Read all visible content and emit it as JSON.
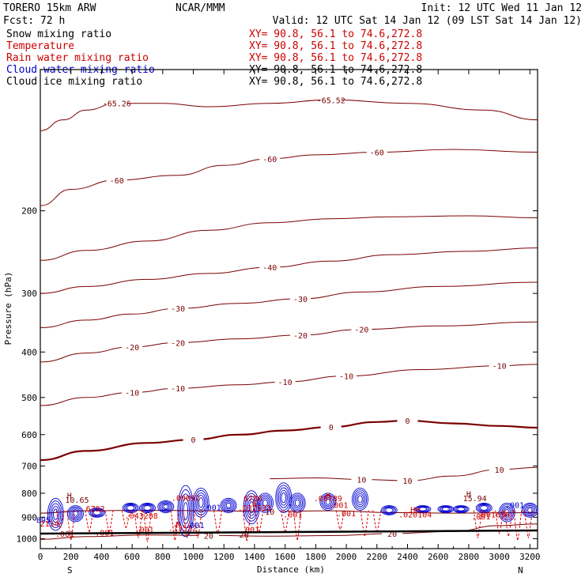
{
  "header": {
    "model": "TORERO 15km ARW",
    "center": "NCAR/MMM",
    "init": "Init: 12 UTC Wed 11 Jan 12",
    "fcst": "Fcst: 72 h",
    "valid": "Valid: 12 UTC Sat 14 Jan 12 (09 LST Sat 14 Jan 12)"
  },
  "legend": [
    {
      "name": "Snow mixing ratio",
      "xy": "XY= 90.8, 56.1 to 74.6,272.8",
      "color": "#000000",
      "xy_color": "#cc0000"
    },
    {
      "name": "Temperature",
      "xy": "XY= 90.8, 56.1 to 74.6,272.8",
      "color": "#cc0000",
      "xy_color": "#cc0000"
    },
    {
      "name": "Rain water mixing ratio",
      "xy": "XY= 90.8, 56.1 to 74.6,272.8",
      "color": "#cc0000",
      "xy_color": "#cc0000"
    },
    {
      "name": "Cloud water mixing ratio",
      "xy": "XY= 90.8, 56.1 to 74.6,272.8",
      "color": "#0000cc",
      "xy_color": "#000000"
    },
    {
      "name": "Cloud ice mixing ratio",
      "xy": "XY= 90.8, 56.1 to 74.6,272.8",
      "color": "#000000",
      "xy_color": "#000000"
    }
  ],
  "colors": {
    "temperature": "#7a0000",
    "rain": "#e00000",
    "cloud": "#0000d0",
    "snow": "#000000",
    "axis": "#000000"
  },
  "chart_data": {
    "type": "line",
    "xlabel": "Distance (km)",
    "ylabel": "Pressure (hPa)",
    "xlim": [
      0,
      3250
    ],
    "ylim": [
      1050,
      100
    ],
    "x_ticks": [
      0,
      200,
      400,
      600,
      800,
      1000,
      1200,
      1400,
      1600,
      1800,
      2000,
      2200,
      2400,
      2600,
      2800,
      3000,
      3200
    ],
    "y_ticks": [
      200,
      300,
      400,
      500,
      600,
      700,
      800,
      900,
      1000
    ],
    "y_log": true,
    "x_end_labels": [
      "S",
      "N"
    ],
    "isotherms": [
      {
        "value": -65,
        "labels": [
          "-65.26",
          "-65.52"
        ],
        "points": [
          [
            0,
            135
          ],
          [
            150,
            128
          ],
          [
            300,
            122
          ],
          [
            500,
            118
          ],
          [
            800,
            118
          ],
          [
            1100,
            120
          ],
          [
            1500,
            118
          ],
          [
            1900,
            116
          ],
          [
            2400,
            118
          ],
          [
            2900,
            122
          ],
          [
            3250,
            128
          ]
        ]
      },
      {
        "value": -60,
        "labels": [
          "-60",
          "-60",
          "-60"
        ],
        "points": [
          [
            0,
            195
          ],
          [
            200,
            180
          ],
          [
            500,
            172
          ],
          [
            900,
            168
          ],
          [
            1200,
            160
          ],
          [
            1500,
            155
          ],
          [
            1800,
            152
          ],
          [
            2200,
            150
          ],
          [
            2700,
            148
          ],
          [
            3250,
            150
          ]
        ]
      },
      {
        "value": -50,
        "labels": [],
        "points": [
          [
            0,
            255
          ],
          [
            300,
            243
          ],
          [
            700,
            232
          ],
          [
            1100,
            220
          ],
          [
            1500,
            212
          ],
          [
            1900,
            208
          ],
          [
            2300,
            206
          ],
          [
            2800,
            205
          ],
          [
            3250,
            207
          ]
        ]
      },
      {
        "value": -40,
        "labels": [
          "-40"
        ],
        "points": [
          [
            0,
            300
          ],
          [
            300,
            290
          ],
          [
            700,
            280
          ],
          [
            1100,
            272
          ],
          [
            1500,
            264
          ],
          [
            1900,
            256
          ],
          [
            2300,
            248
          ],
          [
            2800,
            244
          ],
          [
            3250,
            240
          ]
        ]
      },
      {
        "value": -30,
        "labels": [
          "-30",
          "-30"
        ],
        "points": [
          [
            0,
            355
          ],
          [
            300,
            342
          ],
          [
            600,
            332
          ],
          [
            900,
            323
          ],
          [
            1300,
            315
          ],
          [
            1700,
            308
          ],
          [
            2100,
            298
          ],
          [
            2600,
            290
          ],
          [
            3250,
            284
          ]
        ]
      },
      {
        "value": -20,
        "labels": [
          "-20",
          "-20",
          "-20",
          "-20"
        ],
        "points": [
          [
            0,
            420
          ],
          [
            300,
            402
          ],
          [
            600,
            390
          ],
          [
            900,
            382
          ],
          [
            1300,
            375
          ],
          [
            1700,
            368
          ],
          [
            2100,
            358
          ],
          [
            2600,
            352
          ],
          [
            3250,
            345
          ]
        ]
      },
      {
        "value": -10,
        "labels": [
          "-10",
          "-10",
          "-10",
          "-10",
          "-10"
        ],
        "points": [
          [
            0,
            520
          ],
          [
            300,
            500
          ],
          [
            600,
            488
          ],
          [
            900,
            478
          ],
          [
            1300,
            470
          ],
          [
            1600,
            463
          ],
          [
            2000,
            450
          ],
          [
            2500,
            436
          ],
          [
            3000,
            428
          ],
          [
            3250,
            425
          ]
        ]
      },
      {
        "value": 0,
        "labels": [
          "0",
          "0",
          "0"
        ],
        "points": [
          [
            0,
            680
          ],
          [
            300,
            650
          ],
          [
            700,
            625
          ],
          [
            1000,
            615
          ],
          [
            1300,
            600
          ],
          [
            1600,
            588
          ],
          [
            1900,
            578
          ],
          [
            2200,
            564
          ],
          [
            2400,
            560
          ],
          [
            2700,
            568
          ],
          [
            3000,
            575
          ],
          [
            3250,
            580
          ]
        ],
        "bold": true
      },
      {
        "value": 10,
        "labels": [
          "10",
          "10",
          "10"
        ],
        "points": [
          [
            1500,
            745
          ],
          [
            1800,
            742
          ],
          [
            2100,
            748
          ],
          [
            2400,
            752
          ],
          [
            2700,
            735
          ],
          [
            3000,
            712
          ],
          [
            3250,
            705
          ]
        ]
      },
      {
        "value": 10,
        "labels": [
          "10"
        ],
        "points": [
          [
            0,
            882
          ],
          [
            300,
            872
          ],
          [
            700,
            870
          ],
          [
            1100,
            872
          ],
          [
            1500,
            875
          ],
          [
            1900,
            872
          ],
          [
            2300,
            880
          ],
          [
            2700,
            882
          ],
          [
            3250,
            880
          ]
        ]
      },
      {
        "value": 20,
        "labels": [
          "20",
          "20"
        ],
        "points": [
          [
            0,
            1003
          ],
          [
            300,
            990
          ],
          [
            700,
            982
          ],
          [
            1100,
            984
          ],
          [
            1500,
            988
          ],
          [
            1900,
            985
          ],
          [
            2300,
            975
          ],
          [
            2700,
            965
          ],
          [
            3000,
            938
          ],
          [
            3250,
            930
          ]
        ]
      }
    ],
    "annotations": [
      {
        "text": "H",
        "x": 190,
        "y": 820,
        "color": "#7a0000"
      },
      {
        "text": "10.65",
        "x": 240,
        "y": 838,
        "color": "#7a0000"
      },
      {
        "text": "H",
        "x": 2800,
        "y": 815,
        "color": "#7a0000"
      },
      {
        "text": "15.94",
        "x": 2840,
        "y": 832,
        "color": "#7a0000"
      },
      {
        "text": "H",
        "x": 1400,
        "y": 855,
        "color": "#cc0000"
      },
      {
        "text": "H",
        "x": 1880,
        "y": 820,
        "color": "#cc0000"
      },
      {
        "text": ".037633",
        "x": 1400,
        "y": 872,
        "color": "#cc0000"
      },
      {
        "text": ".043208",
        "x": 660,
        "y": 906,
        "color": "#cc0000"
      },
      {
        "text": ".06789",
        "x": 1880,
        "y": 832,
        "color": "#cc0000"
      },
      {
        "text": "6792",
        "x": 360,
        "y": 875,
        "color": "#cc0000"
      },
      {
        "text": "6786",
        "x": 1390,
        "y": 832,
        "color": "#cc0000"
      },
      {
        "text": ".00092",
        "x": 950,
        "y": 830,
        "color": "#cc0000"
      },
      {
        "text": "HH",
        "x": 2450,
        "y": 880,
        "color": "#cc0000"
      },
      {
        "text": ".020104",
        "x": 2450,
        "y": 900,
        "color": "#cc0000"
      },
      {
        "text": ".001656",
        "x": 2960,
        "y": 900,
        "color": "#cc0000"
      },
      {
        "text": ".001",
        "x": 3100,
        "y": 860,
        "color": "#0000cc"
      },
      {
        "text": ".001",
        "x": 2880,
        "y": 910,
        "color": "#cc0000"
      },
      {
        "text": ".001",
        "x": 420,
        "y": 985,
        "color": "#cc0000"
      },
      {
        "text": ".001",
        "x": 680,
        "y": 970,
        "color": "#cc0000"
      },
      {
        "text": ".001",
        "x": 1370,
        "y": 970,
        "color": "#cc0000"
      },
      {
        "text": ".001",
        "x": 2000,
        "y": 895,
        "color": "#cc0000"
      },
      {
        "text": ".001",
        "x": 1650,
        "y": 900,
        "color": "#cc0000"
      },
      {
        "text": ".001",
        "x": 1950,
        "y": 860,
        "color": "#cc0000"
      },
      {
        "text": "H",
        "x": 900,
        "y": 945,
        "color": "#cc0000"
      },
      {
        "text": ".13532",
        "x": 930,
        "y": 962,
        "color": "#cc0000"
      },
      {
        "text": "895",
        "x": 20,
        "y": 925,
        "color": "#0000cc"
      },
      {
        "text": "2114",
        "x": 60,
        "y": 942,
        "color": "#cc0000"
      },
      {
        "text": ".001",
        "x": 160,
        "y": 990,
        "color": "#cc0000"
      },
      {
        "text": ".001",
        "x": 1010,
        "y": 950,
        "color": "#0000cc"
      },
      {
        "text": ".001",
        "x": 1120,
        "y": 870,
        "color": "#0000cc"
      }
    ],
    "rain_spikes": [
      [
        130,
        940
      ],
      [
        200,
        1000
      ],
      [
        320,
        960
      ],
      [
        450,
        960
      ],
      [
        560,
        940
      ],
      [
        640,
        990
      ],
      [
        700,
        1010
      ],
      [
        880,
        1000
      ],
      [
        960,
        990
      ],
      [
        1030,
        990
      ],
      [
        1160,
        970
      ],
      [
        1350,
        1005
      ],
      [
        1430,
        960
      ],
      [
        1600,
        960
      ],
      [
        1680,
        1000
      ],
      [
        1960,
        950
      ],
      [
        2120,
        980
      ],
      [
        2200,
        960
      ],
      [
        2860,
        990
      ],
      [
        3000,
        970
      ],
      [
        3060,
        980
      ],
      [
        3120,
        1000
      ],
      [
        3190,
        990
      ]
    ],
    "cloud_columns": [
      [
        100,
        820,
        960
      ],
      [
        230,
        850,
        920
      ],
      [
        370,
        860,
        900
      ],
      [
        590,
        840,
        880
      ],
      [
        700,
        840,
        880
      ],
      [
        820,
        830,
        880
      ],
      [
        950,
        770,
        990
      ],
      [
        1050,
        780,
        900
      ],
      [
        1230,
        820,
        880
      ],
      [
        1380,
        790,
        930
      ],
      [
        1470,
        800,
        880
      ],
      [
        1590,
        760,
        880
      ],
      [
        1680,
        800,
        880
      ],
      [
        1880,
        800,
        870
      ],
      [
        2090,
        780,
        870
      ],
      [
        2280,
        850,
        890
      ],
      [
        2500,
        850,
        880
      ],
      [
        2650,
        850,
        880
      ],
      [
        2750,
        850,
        880
      ],
      [
        2900,
        840,
        880
      ],
      [
        3050,
        840,
        920
      ],
      [
        3200,
        840,
        900
      ]
    ]
  },
  "surface": {
    "label": "20",
    "label_x": 1300
  }
}
